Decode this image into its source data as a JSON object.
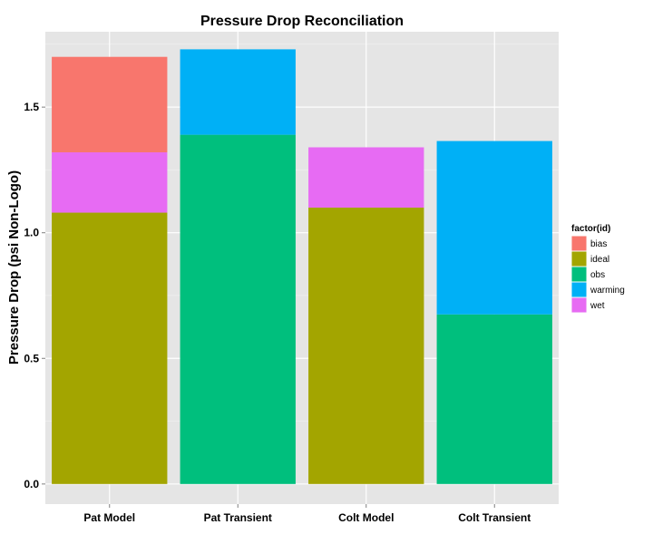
{
  "chart_data": {
    "type": "bar",
    "stacked": true,
    "title": "Pressure Drop Reconciliation",
    "xlabel": "",
    "ylabel": "Pressure Drop (psi Non-Logo)",
    "ylim": [
      -0.08,
      1.8
    ],
    "yticks": [
      0.0,
      0.5,
      1.0,
      1.5
    ],
    "ytick_labels": [
      "0.0",
      "0.5",
      "1.0",
      "1.5"
    ],
    "grid": true,
    "categories": [
      "Pat Model",
      "Pat Transient",
      "Colt Model",
      "Colt Transient"
    ],
    "legend": {
      "title": "factor(id)",
      "placement": "right",
      "entries": [
        "bias",
        "ideal",
        "obs",
        "warming",
        "wet"
      ]
    },
    "colors": {
      "bias": "#F8766D",
      "ideal": "#A3A500",
      "obs": "#00BF7D",
      "warming": "#00B0F6",
      "wet": "#E76BF3"
    },
    "bars": [
      {
        "category": "Pat Model",
        "segments": [
          {
            "id": "ideal",
            "value": 1.08
          },
          {
            "id": "wet",
            "value": 0.24
          },
          {
            "id": "bias",
            "value": 0.38
          }
        ]
      },
      {
        "category": "Pat Transient",
        "segments": [
          {
            "id": "obs",
            "value": 1.39
          },
          {
            "id": "warming",
            "value": 0.34
          }
        ]
      },
      {
        "category": "Colt Model",
        "segments": [
          {
            "id": "ideal",
            "value": 1.1
          },
          {
            "id": "wet",
            "value": 0.24
          }
        ]
      },
      {
        "category": "Colt Transient",
        "segments": [
          {
            "id": "obs",
            "value": 0.675
          },
          {
            "id": "warming",
            "value": 0.69
          }
        ]
      }
    ]
  }
}
